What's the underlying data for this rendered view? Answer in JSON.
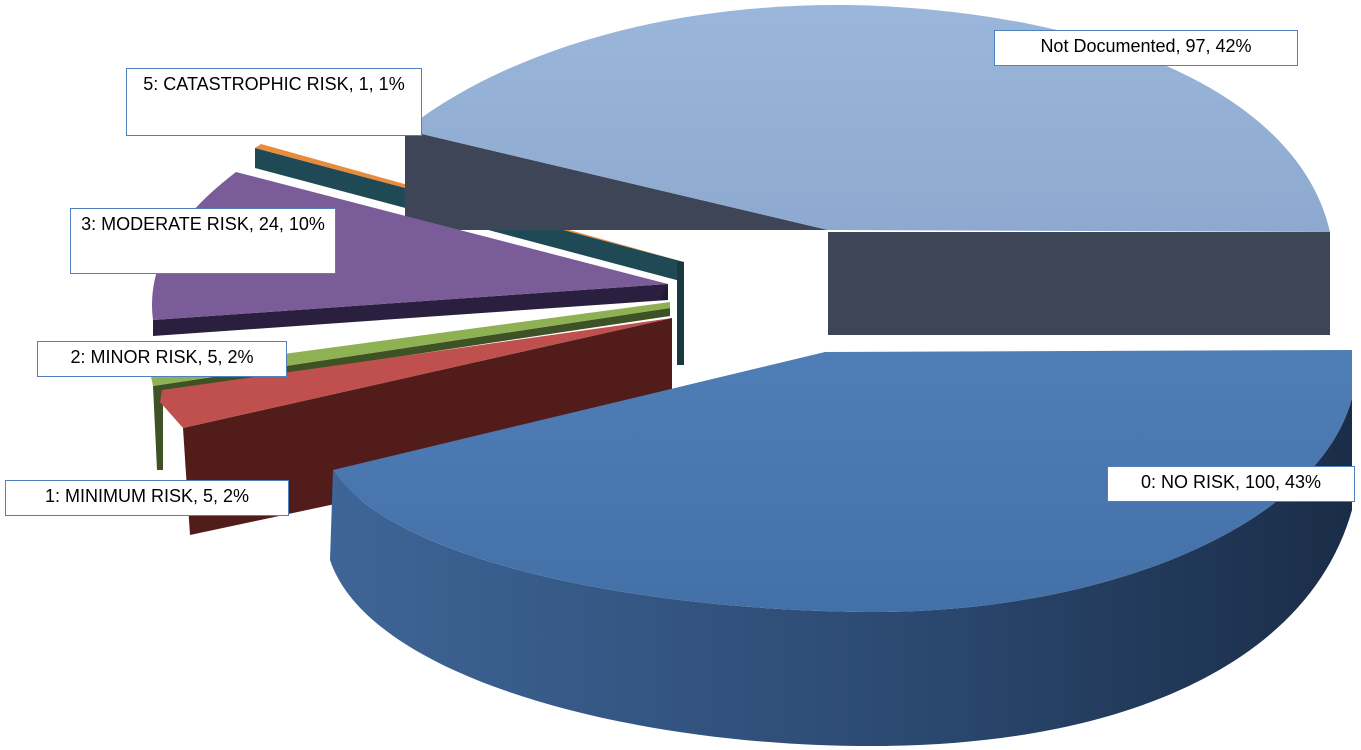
{
  "chart_data": {
    "type": "pie",
    "style": "3d-exploded",
    "legend": "none",
    "slices": [
      {
        "label": "0: NO RISK",
        "value": 100,
        "percent": "43%",
        "color": "#4a76ad"
      },
      {
        "label": "1: MINIMUM RISK",
        "value": 5,
        "percent": "2%",
        "color": "#c0504d"
      },
      {
        "label": "2: MINOR RISK",
        "value": 5,
        "percent": "2%",
        "color": "#9bbb59"
      },
      {
        "label": "3: MODERATE RISK",
        "value": 24,
        "percent": "10%",
        "color": "#8064a2"
      },
      {
        "label": "5: CATASTROPHIC RISK",
        "value": 1,
        "percent": "1%",
        "color": "#f79646"
      },
      {
        "label": "Not Documented",
        "value": 97,
        "percent": "42%",
        "color": "#95b3d7"
      }
    ],
    "data_labels": [
      "Not Documented, 97, 42%",
      "5: CATASTROPHIC RISK, 1, 1%",
      "3: MODERATE RISK, 24, 10%",
      "2: MINOR RISK, 5, 2%",
      "1: MINIMUM RISK, 5, 2%",
      "0: NO RISK, 100, 43%"
    ]
  }
}
